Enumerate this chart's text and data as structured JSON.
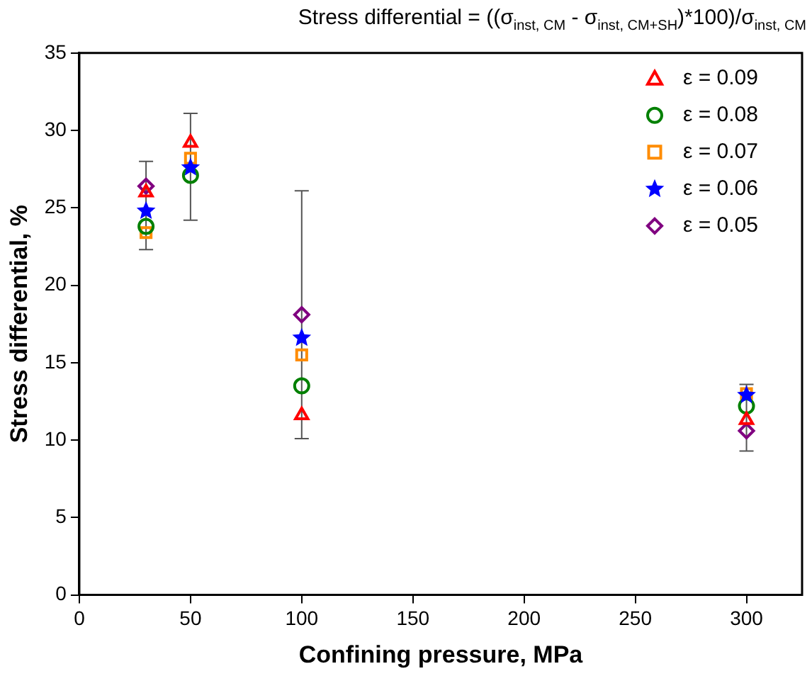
{
  "chart_data": {
    "type": "scatter",
    "title": "Stress differential = ((σ$_{inst, CM}$ - σ$_{inst, CM+SH}$)*100)/σ$_{inst, CM}$",
    "xlabel": "Confining pressure, MPa",
    "ylabel": "Stress differential, %",
    "x": [
      30,
      50,
      100,
      300
    ],
    "xlim": [
      0,
      325
    ],
    "xticks": [
      0,
      50,
      100,
      150,
      200,
      250,
      300
    ],
    "ylim": [
      0,
      35
    ],
    "yticks": [
      0,
      5,
      10,
      15,
      20,
      25,
      30,
      35
    ],
    "grid": false,
    "legend": "top right",
    "series": [
      {
        "name": "ε = 0.09",
        "color": "#ff0000",
        "marker": "triangle",
        "values": [
          26.0,
          29.2,
          11.6,
          11.3
        ],
        "errors": [
          [
            22.3,
            28.0
          ],
          [
            24.2,
            31.1
          ],
          [
            10.1,
            26.1
          ],
          [
            9.3,
            13.6
          ]
        ]
      },
      {
        "name": "ε = 0.08",
        "color": "#008000",
        "marker": "circle",
        "values": [
          23.8,
          27.1,
          13.5,
          12.2
        ]
      },
      {
        "name": "ε = 0.07",
        "color": "#ff8c00",
        "marker": "square",
        "values": [
          23.4,
          28.2,
          15.5,
          13.0
        ]
      },
      {
        "name": "ε = 0.06",
        "color": "#0000ff",
        "marker": "star",
        "values": [
          24.8,
          27.6,
          16.6,
          12.9
        ]
      },
      {
        "name": "ε = 0.05",
        "color": "#800080",
        "marker": "diamond",
        "values": [
          26.4,
          null,
          18.1,
          10.6
        ]
      }
    ]
  }
}
